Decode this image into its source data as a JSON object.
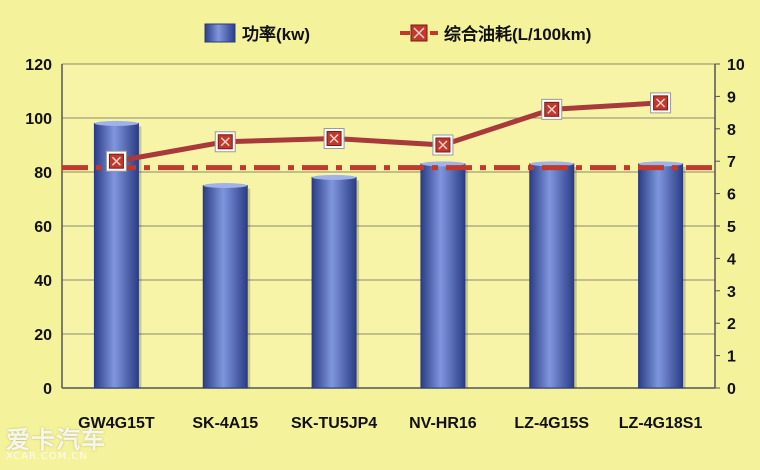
{
  "chart_data": {
    "type": "bar",
    "categories": [
      "GW4G15T",
      "SK-4A15",
      "SK-TU5JP4",
      "NV-HR16",
      "LZ-4G15S",
      "LZ-4G18S1"
    ],
    "series": [
      {
        "name": "功率(kw)",
        "type": "bar",
        "axis": "left",
        "values": [
          98,
          75,
          78,
          83,
          83,
          83
        ]
      },
      {
        "name": "综合油耗(L/100km)",
        "type": "line",
        "axis": "right",
        "values": [
          7.0,
          7.6,
          7.7,
          7.5,
          8.6,
          8.8
        ]
      }
    ],
    "reference_line": {
      "axis": "right",
      "value": 6.8,
      "style": "dashed"
    },
    "ylim_left": [
      0,
      120
    ],
    "yticks_left": [
      0,
      20,
      40,
      60,
      80,
      100,
      120
    ],
    "ylim_right": [
      0,
      10
    ],
    "yticks_right": [
      0,
      1,
      2,
      3,
      4,
      5,
      6,
      7,
      8,
      9,
      10
    ],
    "grid": "horizontal",
    "legend_position": "top-center",
    "colors": {
      "background": "#f5f29c",
      "plot_background": "#f7f4a8",
      "bar": "#4a64b8",
      "bar_dark": "#2b3d86",
      "bar_light": "#7f96dd",
      "line": "#a83a3c",
      "marker": "#c0392b",
      "reference": "#c0392b"
    }
  },
  "watermark": {
    "main": "爱卡汽车",
    "sub": "XCAR.COM.CN"
  }
}
